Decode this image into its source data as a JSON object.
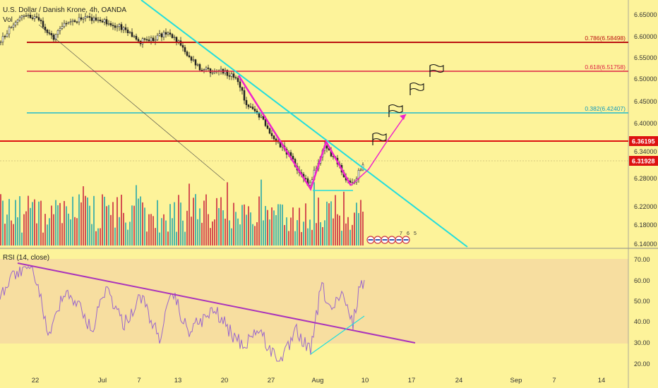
{
  "symbol": "U.S. Dollar / Danish Krone, 4h, OANDA",
  "volume_label": "Vol",
  "rsi_label": "RSI (14, close)",
  "colors": {
    "background": "#fdf39a",
    "rsi_band": "#f7dea0",
    "candle": "#222222",
    "volume_bar": "#cc3344",
    "volume_bar_up": "#33aaa8",
    "trendline": "#22dddd",
    "pattern": "#ee22cc",
    "resistance": "#dd1111",
    "fib_786": "#bb1111",
    "fib_618": "#dd2244",
    "fib_382": "#22bbcc",
    "rsi_line": "#9a66cc",
    "rsi_trend": "#aa33bb"
  },
  "chart_data": [
    {
      "type": "candlestick",
      "pane": "price",
      "y_ticks": [
        "6.65000",
        "6.60000",
        "6.55000",
        "6.50000",
        "6.45000",
        "6.40000",
        "6.34000",
        "6.28000",
        "6.22000",
        "6.18000",
        "6.14000"
      ],
      "x_ticks": [
        "22",
        "Jul",
        "7",
        "13",
        "20",
        "27",
        "Aug",
        "10",
        "17",
        "24",
        "Sep",
        "7",
        "14"
      ],
      "ylim": [
        6.14,
        6.67
      ],
      "levels": [
        {
          "label": "0.786(6.58498)",
          "value": 6.58498,
          "color": "#bb1111"
        },
        {
          "label": "0.618(6.51758)",
          "value": 6.51758,
          "color": "#dd2244"
        },
        {
          "label": "0.382(6.42407)",
          "value": 6.42407,
          "color": "#22bbcc"
        }
      ],
      "resistance": {
        "label": "6.36195",
        "value": 6.36195
      },
      "last_price": {
        "label": "6.31928",
        "value": 6.31928
      },
      "drawn_pattern": "W (double bottom) with projected upward path to 0.382 level",
      "event_markers": [
        "7",
        "6",
        "5"
      ],
      "volume": "bars at bottom of price pane"
    },
    {
      "type": "line",
      "pane": "rsi",
      "name": "RSI (14, close)",
      "y_ticks": [
        "70.00",
        "60.00",
        "50.00",
        "40.00",
        "30.00",
        "20.00"
      ],
      "ylim": [
        17,
        73
      ],
      "band": [
        30,
        70
      ]
    }
  ]
}
